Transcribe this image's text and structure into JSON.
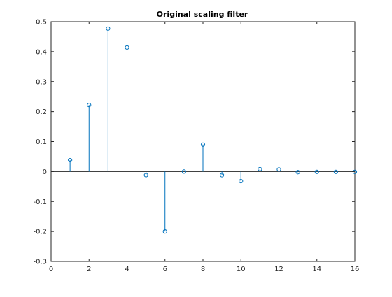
{
  "chart_data": {
    "type": "stem",
    "title": "Original scaling filter",
    "xlabel": "",
    "ylabel": "",
    "xlim": [
      0,
      16
    ],
    "ylim": [
      -0.3,
      0.5
    ],
    "xticks": [
      0,
      2,
      4,
      6,
      8,
      10,
      12,
      14,
      16
    ],
    "xtick_labels": [
      "0",
      "2",
      "4",
      "6",
      "8",
      "10",
      "12",
      "14",
      "16"
    ],
    "yticks": [
      -0.3,
      -0.2,
      -0.1,
      0,
      0.1,
      0.2,
      0.3,
      0.4,
      0.5
    ],
    "ytick_labels": [
      "-0.3",
      "-0.2",
      "-0.1",
      "0",
      "0.1",
      "0.2",
      "0.3",
      "0.4",
      "0.5"
    ],
    "grid": false,
    "marker": "circle",
    "color": "#0072bd",
    "x": [
      1,
      2,
      3,
      4,
      5,
      6,
      7,
      8,
      9,
      10,
      11,
      12,
      13,
      14,
      15,
      16
    ],
    "values": [
      0.038,
      0.222,
      0.477,
      0.414,
      -0.012,
      -0.2,
      0.0,
      0.09,
      -0.012,
      -0.032,
      0.008,
      0.007,
      -0.002,
      -0.001,
      -0.001,
      -0.001
    ]
  }
}
